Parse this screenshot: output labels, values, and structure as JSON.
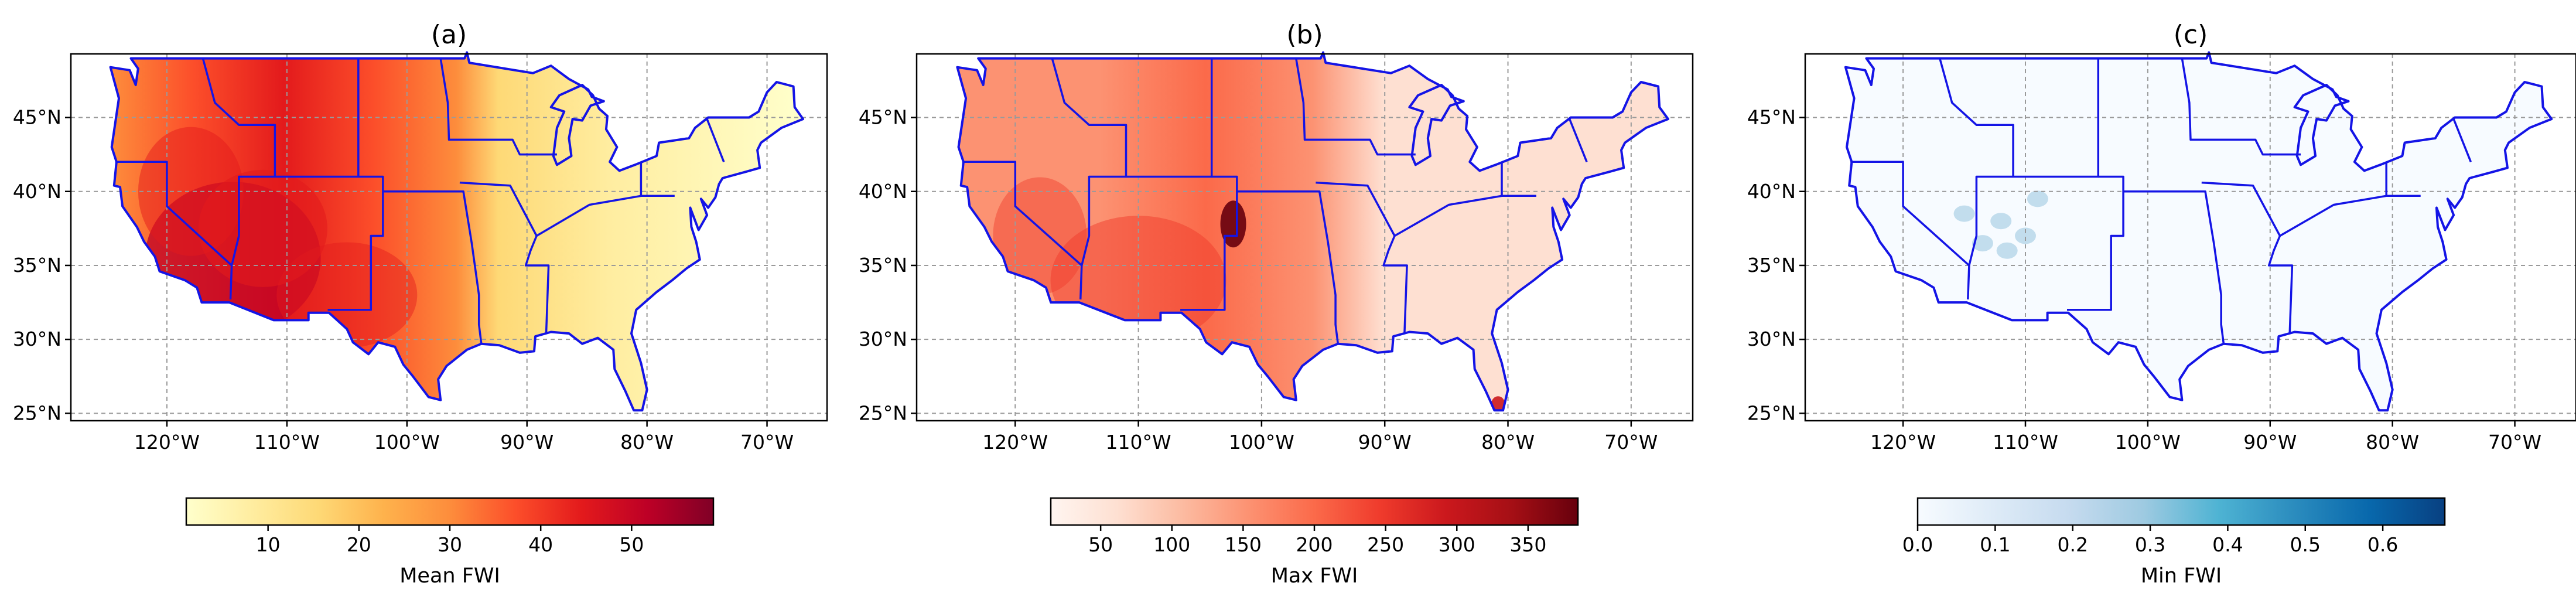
{
  "chart_data": [
    {
      "type": "heatmap",
      "title": "(a)",
      "colorbar_label": "Mean FWI",
      "colormap": [
        "#ffffcc",
        "#ffeda0",
        "#fed976",
        "#feb24c",
        "#fd8d3c",
        "#fc4e2a",
        "#e31a1c",
        "#bd0026",
        "#800026"
      ],
      "colorbar_range": [
        1,
        59
      ],
      "colorbar_ticks": [
        10,
        20,
        30,
        40,
        50
      ],
      "lon_range": [
        -128,
        -65
      ],
      "lat_range": [
        24.5,
        49.3
      ],
      "lon_ticks": [
        "120°W",
        "110°W",
        "100°W",
        "90°W",
        "80°W",
        "70°W"
      ],
      "lat_ticks": [
        "25°N",
        "30°N",
        "35°N",
        "40°N",
        "45°N"
      ],
      "grid": true
    },
    {
      "type": "heatmap",
      "title": "(b)",
      "colorbar_label": "Max FWI",
      "colormap": [
        "#fff5f0",
        "#fee0d2",
        "#fcbba1",
        "#fc9272",
        "#fb6a4a",
        "#ef3b2c",
        "#cb181d",
        "#a50f15",
        "#67000d"
      ],
      "colorbar_range": [
        15,
        385
      ],
      "colorbar_ticks": [
        50,
        100,
        150,
        200,
        250,
        300,
        350
      ],
      "lon_range": [
        -128,
        -65
      ],
      "lat_range": [
        24.5,
        49.3
      ],
      "lon_ticks": [
        "120°W",
        "110°W",
        "100°W",
        "90°W",
        "80°W",
        "70°W"
      ],
      "lat_ticks": [
        "25°N",
        "30°N",
        "35°N",
        "40°N",
        "45°N"
      ],
      "grid": true
    },
    {
      "type": "heatmap",
      "title": "(c)",
      "colorbar_label": "Min FWI",
      "colormap": [
        "#f7fbff",
        "#deebf7",
        "#c6dbef",
        "#9ecae1",
        "#4eb3d3",
        "#2b8cbe",
        "#0868ac",
        "#084081"
      ],
      "colorbar_range": [
        0,
        0.68
      ],
      "colorbar_ticks": [
        "0.0",
        "0.1",
        "0.2",
        "0.3",
        "0.4",
        "0.5",
        "0.6"
      ],
      "lon_range": [
        -128,
        -65
      ],
      "lat_range": [
        24.5,
        49.3
      ],
      "lon_ticks": [
        "120°W",
        "110°W",
        "100°W",
        "90°W",
        "80°W",
        "70°W"
      ],
      "lat_ticks": [
        "25°N",
        "30°N",
        "35°N",
        "40°N",
        "45°N"
      ],
      "grid": true
    }
  ]
}
